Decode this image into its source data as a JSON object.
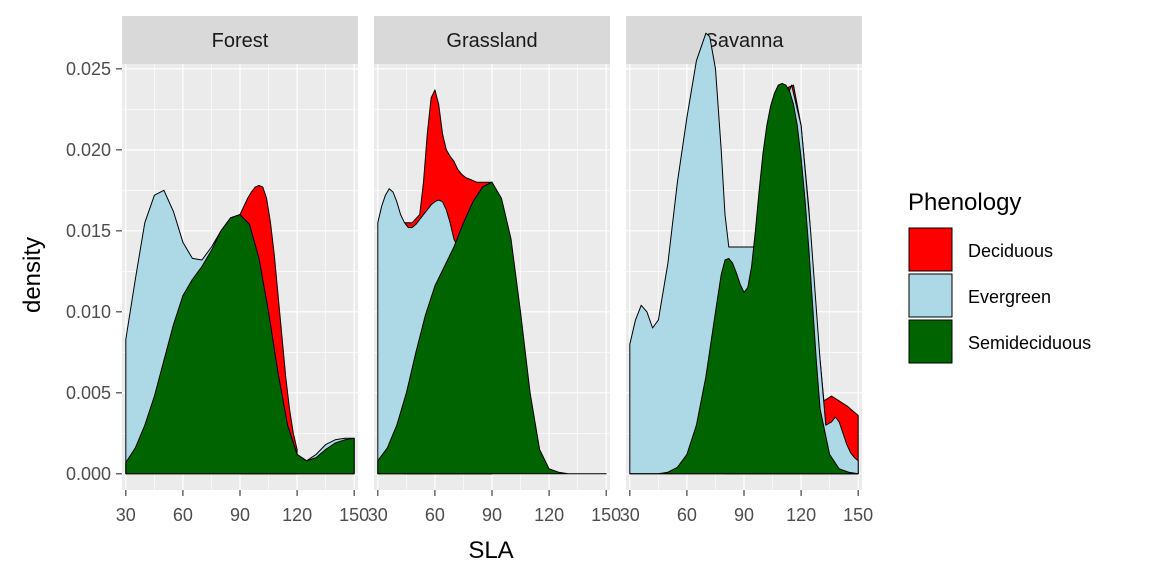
{
  "chart_data": {
    "type": "area",
    "subtype": "faceted density",
    "xlabel": "SLA",
    "ylabel": "density",
    "xlim": [
      28,
      152
    ],
    "ylim": [
      -0.001,
      0.0253
    ],
    "x_ticks": [
      30,
      60,
      90,
      120,
      150
    ],
    "y_ticks": [
      0.0,
      0.005,
      0.01,
      0.015,
      0.02,
      0.025
    ],
    "y_tick_labels": [
      "0.000",
      "0.005",
      "0.010",
      "0.015",
      "0.020",
      "0.025"
    ],
    "legend": {
      "title": "Phenology",
      "position": "right",
      "entries": [
        {
          "label": "Deciduous",
          "color": "#ff0000"
        },
        {
          "label": "Evergreen",
          "color": "#add8e6"
        },
        {
          "label": "Semideciduous",
          "color": "#006400"
        }
      ]
    },
    "facets": [
      {
        "name": "Forest",
        "series": [
          {
            "name": "Evergreen",
            "color": "#add8e6",
            "x": [
              30,
              35,
              40,
              45,
              50,
              55,
              60,
              65,
              70,
              75,
              80,
              85,
              90,
              95,
              100,
              105,
              110,
              115,
              120,
              125,
              130,
              135,
              140,
              145,
              150
            ],
            "y": [
              0.0083,
              0.012,
              0.0155,
              0.0172,
              0.0175,
              0.0162,
              0.0143,
              0.0133,
              0.0132,
              0.014,
              0.015,
              0.0158,
              0.016,
              0.0148,
              0.012,
              0.0085,
              0.005,
              0.0025,
              0.0012,
              0.0008,
              0.0012,
              0.0018,
              0.0021,
              0.0022,
              0.0022
            ]
          },
          {
            "name": "Deciduous",
            "color": "#ff0000",
            "x": [
              90,
              92,
              94,
              96,
              98,
              100,
              102,
              104,
              106,
              108,
              110,
              112,
              114,
              116,
              118,
              120
            ],
            "y": [
              0.016,
              0.0165,
              0.017,
              0.0174,
              0.0177,
              0.0178,
              0.0177,
              0.017,
              0.0155,
              0.0135,
              0.011,
              0.0085,
              0.006,
              0.004,
              0.0025,
              0.0015
            ]
          },
          {
            "name": "Semideciduous",
            "color": "#006400",
            "x": [
              30,
              35,
              40,
              45,
              50,
              55,
              60,
              65,
              70,
              75,
              80,
              85,
              90,
              95,
              100,
              105,
              110,
              115,
              120,
              125,
              130,
              135,
              140,
              145,
              150
            ],
            "y": [
              0.0007,
              0.0016,
              0.003,
              0.0048,
              0.007,
              0.0092,
              0.011,
              0.012,
              0.0128,
              0.0138,
              0.015,
              0.0158,
              0.016,
              0.0154,
              0.0133,
              0.01,
              0.0062,
              0.003,
              0.0012,
              0.0008,
              0.001,
              0.0015,
              0.0019,
              0.0021,
              0.0022
            ]
          }
        ]
      },
      {
        "name": "Grassland",
        "series": [
          {
            "name": "Deciduous",
            "color": "#ff0000",
            "x": [
              44,
              48,
              52,
              54,
              56,
              58,
              60,
              62,
              64,
              66,
              68,
              70,
              72,
              74,
              76,
              78,
              80,
              82,
              84,
              86,
              88,
              90
            ],
            "y": [
              0.0155,
              0.0155,
              0.016,
              0.018,
              0.021,
              0.0232,
              0.0237,
              0.0228,
              0.021,
              0.02,
              0.0196,
              0.0193,
              0.0188,
              0.0185,
              0.0183,
              0.0182,
              0.0181,
              0.018,
              0.018,
              0.018,
              0.018,
              0.018
            ]
          },
          {
            "name": "Evergreen",
            "color": "#add8e6",
            "x": [
              30,
              32,
              34,
              36,
              38,
              40,
              42,
              44,
              46,
              48,
              50,
              52,
              54,
              56,
              58,
              60,
              62,
              64,
              66,
              68,
              70,
              72,
              74,
              76,
              78,
              80,
              85,
              90
            ],
            "y": [
              0.0155,
              0.0165,
              0.0172,
              0.0176,
              0.0174,
              0.0168,
              0.016,
              0.0155,
              0.0152,
              0.0152,
              0.0154,
              0.0157,
              0.016,
              0.0163,
              0.0166,
              0.0168,
              0.0169,
              0.0168,
              0.0163,
              0.0155,
              0.0145,
              0.014,
              0.0143,
              0.015,
              0.016,
              0.0167,
              0.0177,
              0.018
            ]
          },
          {
            "name": "Semideciduous",
            "color": "#006400",
            "x": [
              30,
              35,
              40,
              45,
              50,
              55,
              60,
              65,
              70,
              75,
              80,
              85,
              90,
              95,
              100,
              105,
              110,
              115,
              120,
              125,
              130,
              135,
              140,
              145,
              150
            ],
            "y": [
              0.0008,
              0.0016,
              0.003,
              0.005,
              0.0075,
              0.0098,
              0.0116,
              0.0128,
              0.014,
              0.0155,
              0.0168,
              0.0177,
              0.018,
              0.017,
              0.0145,
              0.01,
              0.005,
              0.0015,
              0.0003,
              0.0001,
              0.0,
              0.0,
              0.0,
              0.0,
              0.0
            ]
          }
        ]
      },
      {
        "name": "Savanna",
        "series": [
          {
            "name": "Deciduous",
            "color": "#ff0000",
            "x": [
              80,
              82,
              86,
              90,
              94,
              98,
              100,
              101,
              104,
              108,
              112,
              116,
              120,
              124,
              128,
              132,
              136,
              140,
              144,
              148,
              150
            ],
            "y": [
              0.0133,
              0.014,
              0.014,
              0.014,
              0.014,
              0.014,
              0.014,
              0.015,
              0.0185,
              0.022,
              0.0238,
              0.024,
              0.0215,
              0.0165,
              0.0095,
              0.0045,
              0.0048,
              0.0045,
              0.0042,
              0.0038,
              0.0036
            ]
          },
          {
            "name": "Evergreen",
            "color": "#add8e6",
            "x": [
              30,
              33,
              36,
              39,
              42,
              45,
              50,
              55,
              60,
              65,
              70,
              72,
              75,
              78,
              80,
              82,
              86,
              90,
              94,
              98,
              100,
              105,
              110,
              115,
              120,
              125,
              130,
              133,
              136,
              138,
              140,
              142,
              144,
              146,
              148,
              150
            ],
            "y": [
              0.008,
              0.0095,
              0.0104,
              0.01,
              0.009,
              0.0095,
              0.013,
              0.018,
              0.022,
              0.0255,
              0.0272,
              0.027,
              0.025,
              0.02,
              0.016,
              0.014,
              0.014,
              0.014,
              0.014,
              0.014,
              0.014,
              0.0185,
              0.0225,
              0.024,
              0.0215,
              0.015,
              0.007,
              0.003,
              0.0032,
              0.0035,
              0.0032,
              0.0025,
              0.0018,
              0.0013,
              0.001,
              0.0008
            ]
          },
          {
            "name": "Semideciduous",
            "color": "#006400",
            "x": [
              30,
              35,
              40,
              45,
              50,
              55,
              60,
              65,
              70,
              75,
              78,
              80,
              82,
              84,
              86,
              88,
              90,
              92,
              94,
              96,
              98,
              100,
              102,
              104,
              106,
              108,
              110,
              112,
              114,
              116,
              118,
              120,
              122,
              124,
              126,
              128,
              130,
              135,
              140,
              145,
              150
            ],
            "y": [
              0.0,
              0.0,
              0.0,
              0.0,
              0.0001,
              0.0004,
              0.0012,
              0.003,
              0.006,
              0.01,
              0.0123,
              0.0132,
              0.0133,
              0.013,
              0.0124,
              0.0117,
              0.0112,
              0.0115,
              0.0128,
              0.015,
              0.0175,
              0.0198,
              0.0215,
              0.0227,
              0.0235,
              0.024,
              0.0241,
              0.024,
              0.0236,
              0.0228,
              0.0215,
              0.0195,
              0.017,
              0.014,
              0.0105,
              0.007,
              0.004,
              0.0012,
              0.0003,
              0.0001,
              0.0
            ]
          }
        ]
      }
    ]
  }
}
